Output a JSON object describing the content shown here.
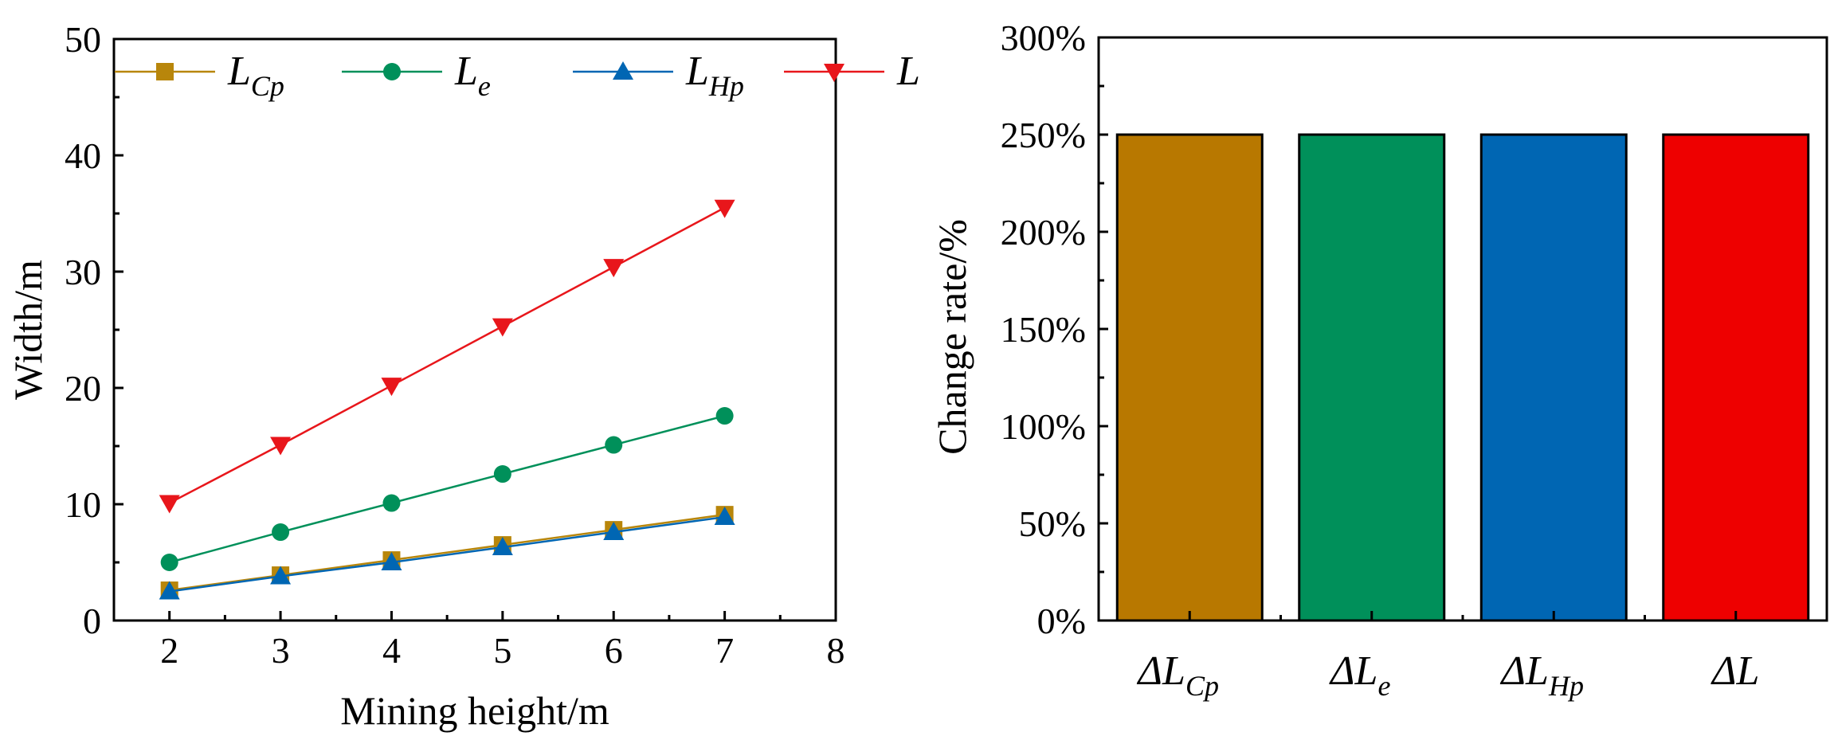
{
  "chart_data": [
    {
      "type": "line",
      "xlabel": "Mining height/m",
      "ylabel": "Width/m",
      "xlim": [
        1.5,
        8
      ],
      "ylim": [
        0,
        50
      ],
      "xticks": [
        "2",
        "3",
        "4",
        "5",
        "6",
        "7",
        "8"
      ],
      "yticks": [
        "0",
        "10",
        "20",
        "30",
        "40",
        "50"
      ],
      "legend_position": "top",
      "x": [
        2,
        3,
        4,
        5,
        6,
        7
      ],
      "series": [
        {
          "name": "L",
          "sub": "Cp",
          "color": "#B8860B",
          "marker": "square",
          "values": [
            2.6,
            3.9,
            5.2,
            6.5,
            7.8,
            9.1
          ]
        },
        {
          "name": "L",
          "sub": "e",
          "color": "#00905A",
          "marker": "circle",
          "values": [
            5.0,
            7.6,
            10.1,
            12.6,
            15.1,
            17.6
          ]
        },
        {
          "name": "L",
          "sub": "Hp",
          "color": "#0066B3",
          "marker": "triangle-up",
          "values": [
            2.5,
            3.8,
            5.0,
            6.3,
            7.6,
            8.9
          ]
        },
        {
          "name": "L",
          "sub": "",
          "color": "#E8161B",
          "marker": "triangle-down",
          "values": [
            10.1,
            15.1,
            20.2,
            25.3,
            30.4,
            35.5
          ]
        }
      ]
    },
    {
      "type": "bar",
      "ylabel": "Change rate/%",
      "xlabel": "",
      "ylim": [
        0,
        300
      ],
      "yticks": [
        "0%",
        "50%",
        "100%",
        "150%",
        "200%",
        "250%",
        "300%"
      ],
      "categories": [
        {
          "prefix": "ΔL",
          "sub": "Cp"
        },
        {
          "prefix": "ΔL",
          "sub": "e"
        },
        {
          "prefix": "ΔL",
          "sub": "Hp"
        },
        {
          "prefix": "ΔL",
          "sub": ""
        }
      ],
      "values": [
        250,
        250,
        250,
        250
      ],
      "colors": [
        "#B87800",
        "#00905A",
        "#0066B3",
        "#EE0000"
      ]
    }
  ]
}
